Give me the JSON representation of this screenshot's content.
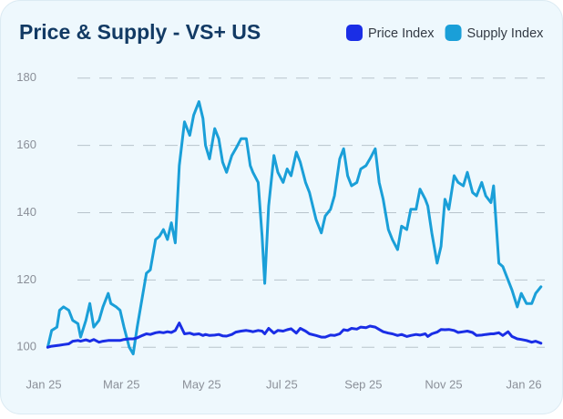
{
  "chart_data": {
    "type": "line",
    "title": "Price & Supply - VS+ US",
    "x": [
      3,
      6,
      10,
      12,
      15,
      19,
      22,
      26,
      28,
      32,
      35,
      38,
      42,
      45,
      49,
      51,
      55,
      58,
      61,
      65,
      68,
      71,
      75,
      78,
      81,
      85,
      88,
      91,
      94,
      97,
      100,
      103,
      107,
      111,
      114,
      118,
      121,
      123,
      126,
      130,
      133,
      136,
      139,
      143,
      146,
      150,
      154,
      157,
      159,
      163,
      166,
      168,
      171,
      175,
      178,
      182,
      185,
      188,
      192,
      195,
      199,
      202,
      207,
      211,
      214,
      218,
      221,
      225,
      228,
      231,
      234,
      238,
      241,
      245,
      248,
      252,
      255,
      258,
      262,
      265,
      269,
      272,
      276,
      279,
      283,
      286,
      290,
      292,
      295,
      299,
      302,
      305,
      308,
      312,
      315,
      319,
      322,
      326,
      329,
      333,
      336,
      340,
      342,
      346,
      349,
      353,
      356,
      360,
      363,
      367,
      371,
      374,
      378
    ],
    "series": [
      {
        "name": "Price Index",
        "color": "#1a2ee6",
        "values": [
          100,
          100.3,
          100.5,
          100.6,
          100.8,
          101,
          101.8,
          102,
          101.8,
          102.2,
          101.8,
          102.3,
          101.5,
          101.8,
          102,
          102,
          102,
          102,
          102.3,
          102.5,
          102.5,
          102.8,
          103.5,
          104,
          103.8,
          104.3,
          104.5,
          104.3,
          104.6,
          104.4,
          105,
          107.2,
          104,
          104.2,
          103.8,
          104,
          103.5,
          103.8,
          103.5,
          103.6,
          103.8,
          103.4,
          103.3,
          103.8,
          104.5,
          104.8,
          105,
          104.8,
          104.6,
          105,
          104.8,
          104,
          105.6,
          104.2,
          105,
          104.8,
          105.2,
          105.5,
          104.2,
          105.6,
          104.8,
          104,
          103.5,
          103,
          103,
          103.6,
          103.5,
          104,
          105.2,
          105,
          105.6,
          105.4,
          106,
          105.8,
          106.3,
          106,
          105.3,
          104.6,
          104.2,
          104,
          103.5,
          103.8,
          103.2,
          103.5,
          103.8,
          103.6,
          104,
          103.2,
          104,
          104.5,
          105.3,
          105.2,
          105.3,
          105,
          104.4,
          104.6,
          104.8,
          104.4,
          103.5,
          103.6,
          103.8,
          104,
          104,
          104.3,
          103.5,
          104.6,
          103.2,
          102.5,
          102.3,
          102,
          101.5,
          101.8,
          101.2
        ]
      },
      {
        "name": "Supply Index",
        "color": "#1a9fd8",
        "values": [
          100,
          105,
          106,
          111,
          112,
          111,
          108,
          107,
          103,
          108,
          113,
          106,
          108,
          112,
          116,
          113,
          112,
          111,
          106,
          100,
          98,
          106,
          115,
          122,
          123,
          132,
          133,
          135,
          132,
          137,
          131,
          154,
          167,
          163,
          169,
          173,
          168,
          160,
          156,
          165,
          162,
          155,
          152,
          157,
          159,
          162,
          162,
          154,
          152,
          149,
          133,
          119,
          142,
          157,
          152,
          149,
          153,
          151,
          158,
          155,
          149,
          146,
          138,
          134,
          139,
          141,
          145,
          156,
          159,
          151,
          148,
          149,
          153,
          154,
          156,
          159,
          149,
          144,
          135,
          132,
          129,
          136,
          135,
          141,
          141,
          147,
          144,
          142,
          134,
          125,
          130,
          144,
          141,
          151,
          149,
          148,
          152,
          146,
          145,
          149,
          145,
          143,
          148,
          125,
          124,
          120,
          117,
          112,
          116,
          113,
          113,
          116,
          118
        ]
      }
    ],
    "xlim": [
      -8,
      380
    ],
    "xticks": [
      {
        "value": 0,
        "label": "Jan 25"
      },
      {
        "value": 59,
        "label": "Mar 25"
      },
      {
        "value": 120,
        "label": "May 25"
      },
      {
        "value": 181,
        "label": "Jul 25"
      },
      {
        "value": 243,
        "label": "Sep 25"
      },
      {
        "value": 304,
        "label": "Nov 25"
      },
      {
        "value": 365,
        "label": "Jan 26"
      }
    ],
    "ylim": [
      96,
      184
    ],
    "yticks": [
      100,
      120,
      140,
      160,
      180
    ],
    "grid": true
  }
}
